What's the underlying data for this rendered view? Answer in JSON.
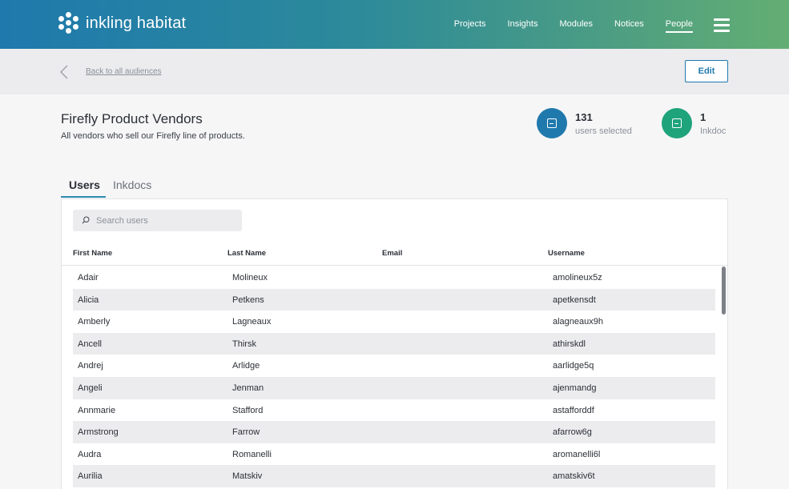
{
  "brand": {
    "name": "inkling habitat"
  },
  "nav": {
    "items": [
      {
        "label": "Projects"
      },
      {
        "label": "Insights"
      },
      {
        "label": "Modules"
      },
      {
        "label": "Notices"
      },
      {
        "label": "People",
        "active": true
      }
    ]
  },
  "subheader": {
    "back_label": "Back to all audiences",
    "edit_label": "Edit"
  },
  "audience": {
    "title": "Firefly Product Vendors",
    "description": "All vendors who sell our Firefly line of products."
  },
  "stats": [
    {
      "value": "131",
      "label": "users selected",
      "color": "#1f79ad",
      "icon": "document-icon"
    },
    {
      "value": "1",
      "label": "Inkdoc",
      "color": "#1fa37b",
      "icon": "document-icon"
    }
  ],
  "tabs": [
    {
      "label": "Users",
      "active": true
    },
    {
      "label": "Inkdocs",
      "active": false
    }
  ],
  "search": {
    "placeholder": "Search users",
    "value": ""
  },
  "table": {
    "columns": [
      "First Name",
      "Last Name",
      "Email",
      "Username"
    ],
    "rows": [
      [
        "Adair",
        "Molineux",
        "",
        "amolineux5z"
      ],
      [
        "Alicia",
        "Petkens",
        "",
        "apetkensdt"
      ],
      [
        "Amberly",
        "Lagneaux",
        "",
        "alagneaux9h"
      ],
      [
        "Ancell",
        "Thirsk",
        "",
        "athirskdl"
      ],
      [
        "Andrej",
        "Arlidge",
        "",
        "aarlidge5q"
      ],
      [
        "Angeli",
        "Jenman",
        "",
        "ajenmandg"
      ],
      [
        "Annmarie",
        "Stafford",
        "",
        "astafforddf"
      ],
      [
        "Armstrong",
        "Farrow",
        "",
        "afarrow6g"
      ],
      [
        "Audra",
        "Romanelli",
        "",
        "aromanelli6l"
      ],
      [
        "Aurilia",
        "Matskiv",
        "",
        "amatskiv6t"
      ]
    ]
  },
  "colors": {
    "brand_start": "#1f79ad",
    "brand_end": "#64ae73",
    "accent": "#1f79ad",
    "inkdoc": "#1fa37b"
  }
}
